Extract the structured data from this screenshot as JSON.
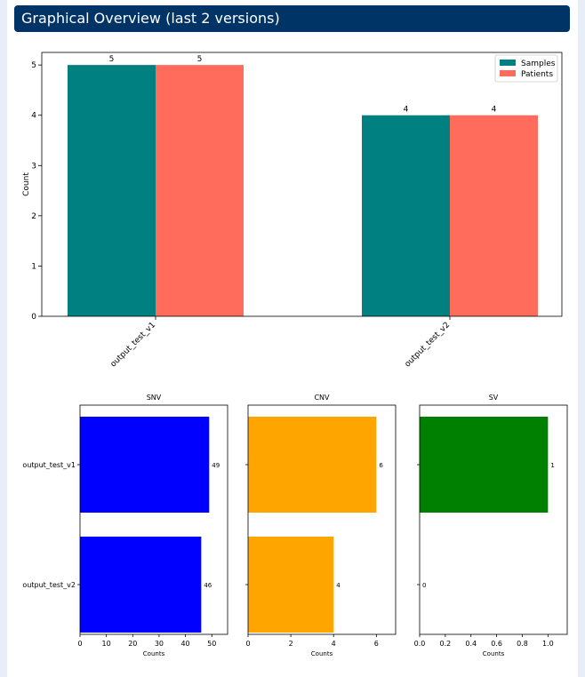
{
  "header": {
    "title": "Graphical Overview (last 2 versions)"
  },
  "chart_data": [
    {
      "type": "bar",
      "categories": [
        "output_test_v1",
        "output_test_v2"
      ],
      "series": [
        {
          "name": "Samples",
          "values": [
            5,
            4
          ],
          "color": "#008080"
        },
        {
          "name": "Patients",
          "values": [
            5,
            4
          ],
          "color": "#ff6c5c"
        }
      ],
      "ylabel": "Count",
      "ylim": [
        0,
        5.25
      ],
      "yticks": [
        "0",
        "1",
        "2",
        "3",
        "4",
        "5"
      ],
      "legend": "top-right",
      "grid": false
    },
    {
      "type": "bar",
      "orientation": "horizontal",
      "title": "SNV",
      "categories": [
        "output_test_v1",
        "output_test_v2"
      ],
      "values": [
        49,
        46
      ],
      "color": "#0000ff",
      "xlabel": "Counts",
      "xlim": [
        0,
        56
      ],
      "xticks": [
        "0",
        "10",
        "20",
        "30",
        "40",
        "50"
      ]
    },
    {
      "type": "bar",
      "orientation": "horizontal",
      "title": "CNV",
      "categories": [
        "output_test_v1",
        "output_test_v2"
      ],
      "values": [
        6,
        4
      ],
      "color": "#ffa500",
      "xlabel": "Counts",
      "xlim": [
        0,
        6.9
      ],
      "xticks": [
        "0",
        "2",
        "4",
        "6"
      ]
    },
    {
      "type": "bar",
      "orientation": "horizontal",
      "title": "SV",
      "categories": [
        "output_test_v1",
        "output_test_v2"
      ],
      "values": [
        1,
        0
      ],
      "color": "#008000",
      "xlabel": "Counts",
      "xlim": [
        0,
        1.15
      ],
      "xticks": [
        "0.0",
        "0.2",
        "0.4",
        "0.6",
        "0.8",
        "1.0"
      ]
    }
  ]
}
